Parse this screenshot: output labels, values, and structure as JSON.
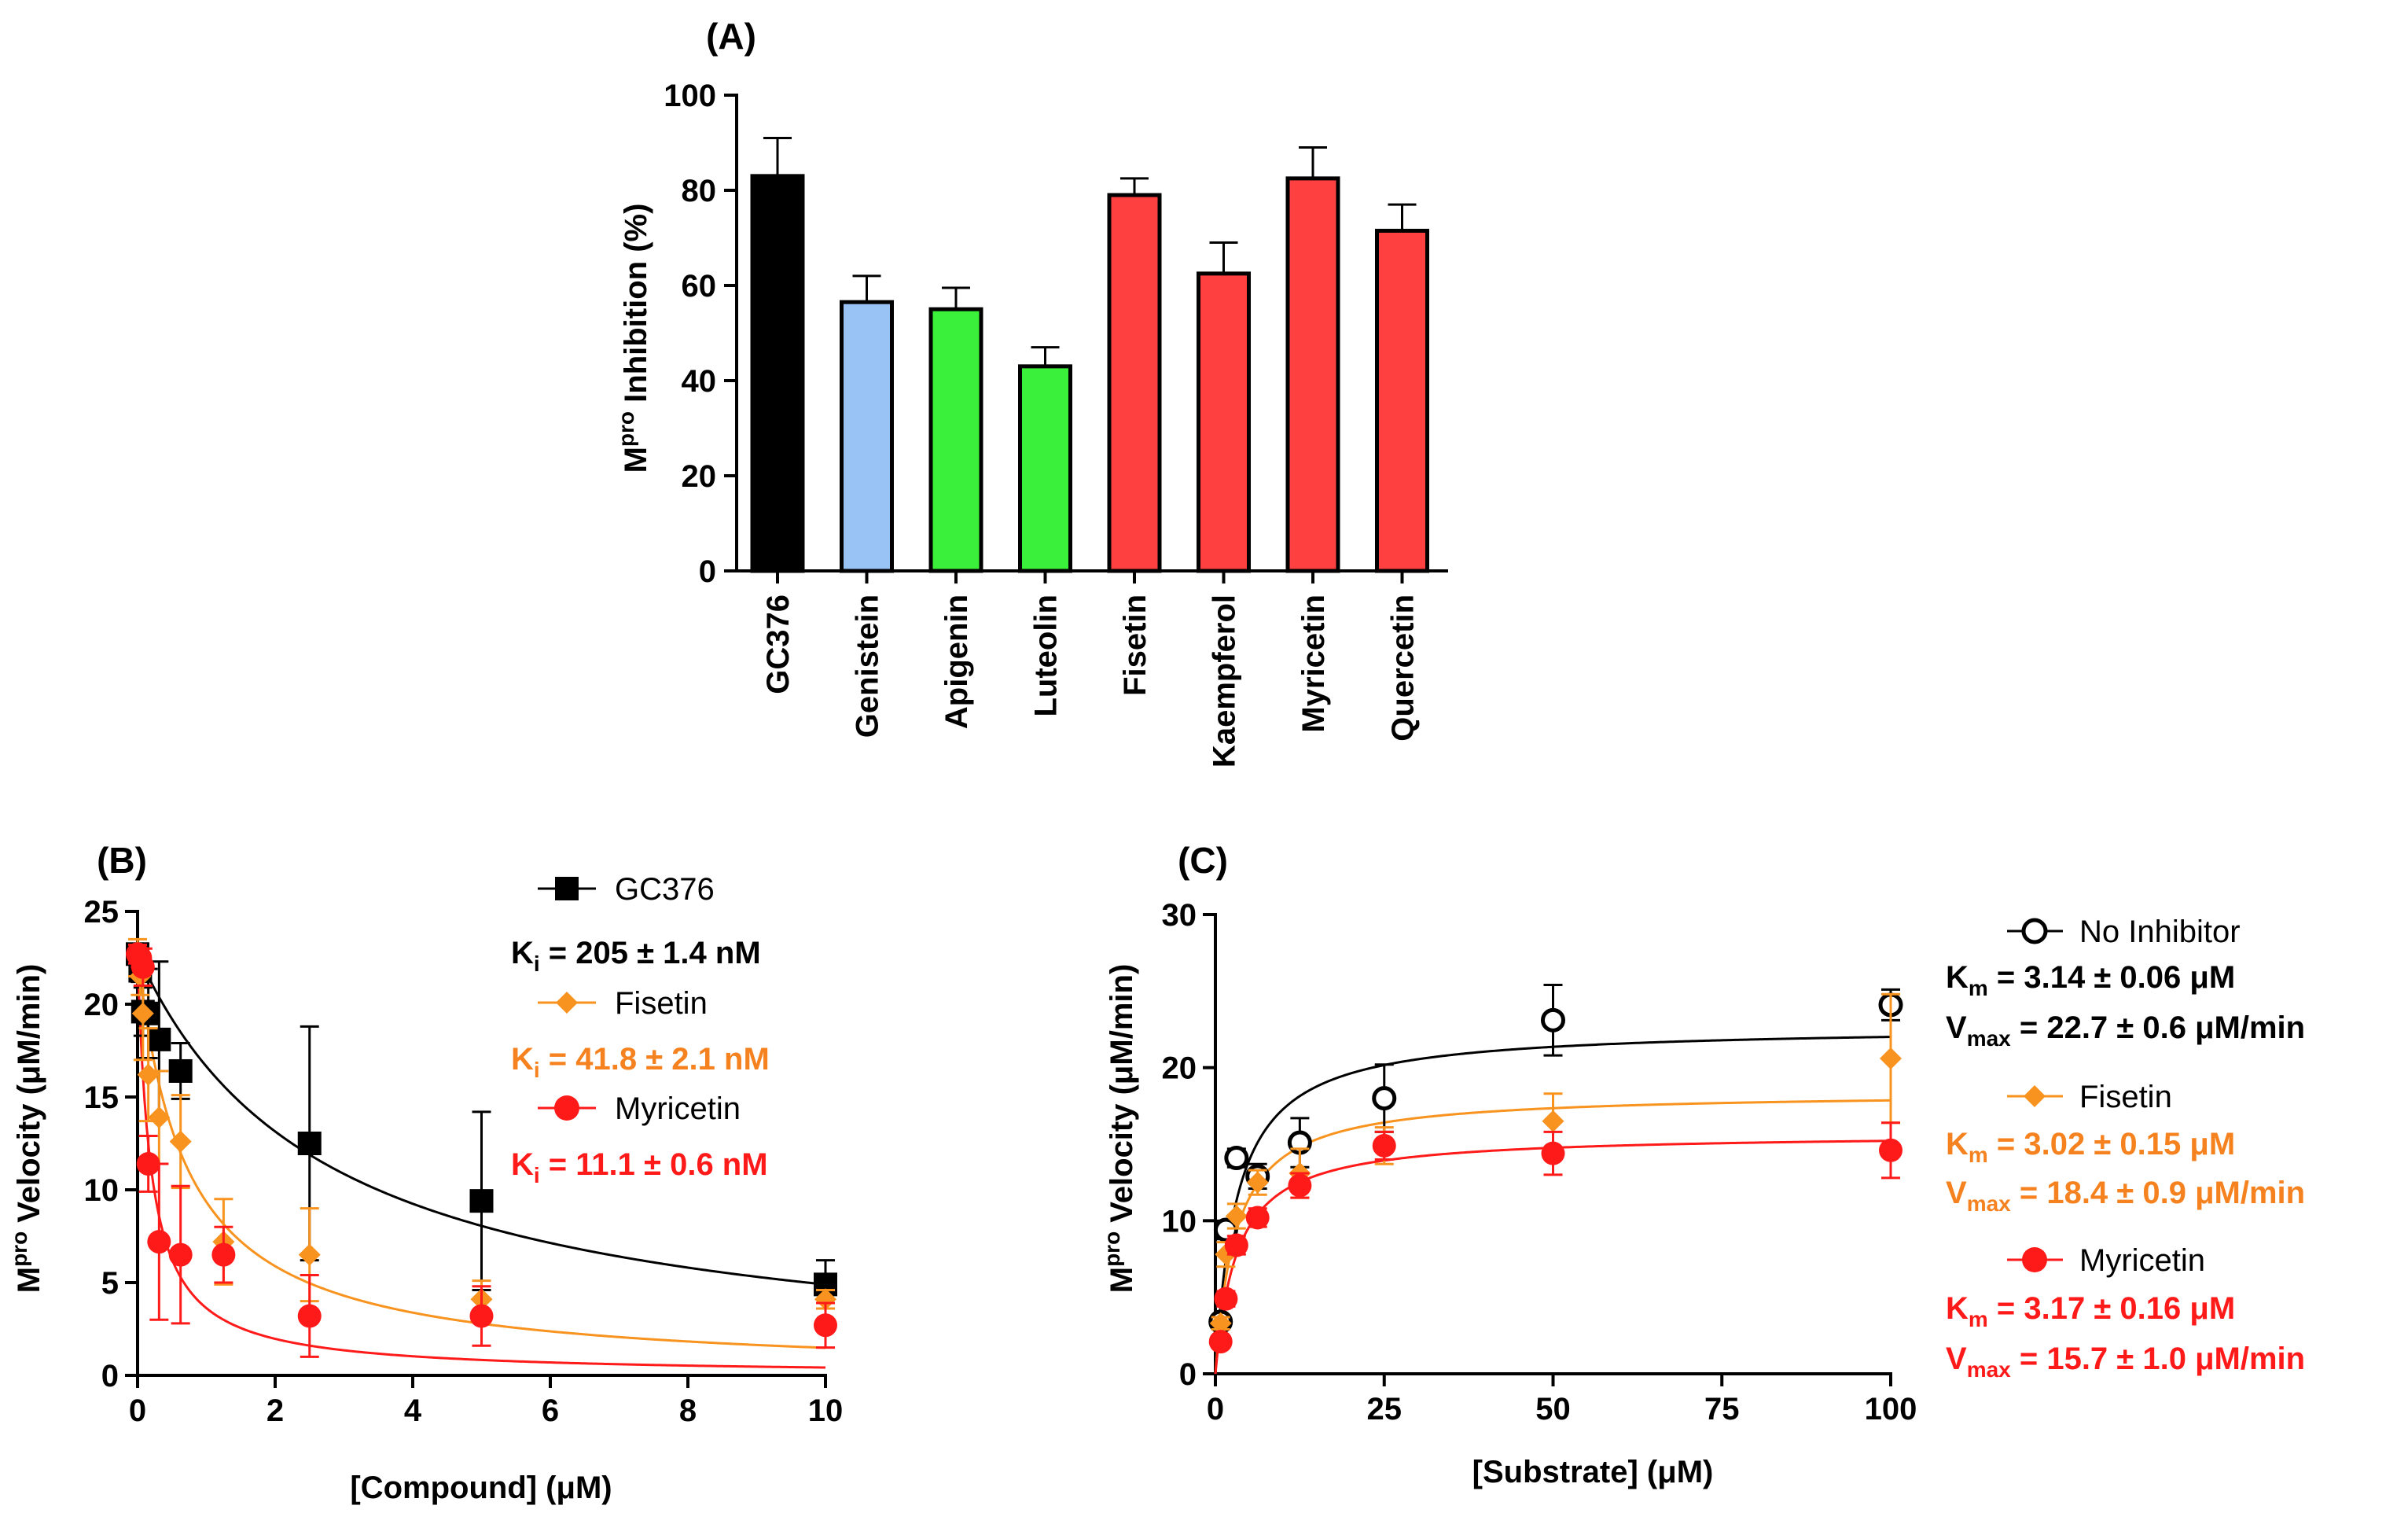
{
  "colors": {
    "black": "#000000",
    "blue": "#99c2f5",
    "green": "#3af03a",
    "red": "#ff4040",
    "orange": "#f7931e",
    "myricetin": "#ff1a1a",
    "kcolor_orange": "#f5821f"
  },
  "chart_data": [
    {
      "panel": "(A)",
      "type": "bar",
      "title": "(A)",
      "ylabel": "Inhibition (%)",
      "ylabel_main": "M",
      "ylabel_sup": "pro",
      "ylim": [
        0,
        100
      ],
      "yticks": [
        "0",
        "20",
        "40",
        "60",
        "80",
        "100"
      ],
      "categories": [
        "GC376",
        "Genistein",
        "Apigenin",
        "Luteolin",
        "Fisetin",
        "Kaempferol",
        "Myricetin",
        "Quercetin"
      ],
      "values": [
        83,
        56.5,
        55,
        43,
        79,
        62.5,
        82.5,
        71.5
      ],
      "errors": [
        8,
        5.5,
        4.5,
        4,
        3.5,
        6.5,
        6.5,
        5.5
      ],
      "bar_colors": [
        "#000000",
        "#99c2f5",
        "#3af03a",
        "#3af03a",
        "#ff4040",
        "#ff4040",
        "#ff4040",
        "#ff4040"
      ]
    },
    {
      "panel": "(B)",
      "type": "scatter",
      "title": "(B)",
      "xlabel": "[Compound] (μM)",
      "ylabel_main": "M",
      "ylabel_sup": "pro",
      "ylabel_rest": " Velocity (μM/min)",
      "xlim": [
        0,
        10
      ],
      "ylim": [
        0,
        25
      ],
      "xticks": [
        "0",
        "2",
        "4",
        "6",
        "8",
        "10"
      ],
      "yticks": [
        "0",
        "5",
        "10",
        "15",
        "20",
        "25"
      ],
      "series": [
        {
          "name": "GC376",
          "marker": "square",
          "color": "#000000",
          "k_label": "K",
          "k_sub": "i",
          "k_value": " = 205 ± 1.4 nM",
          "x": [
            0,
            0.039,
            0.078,
            0.156,
            0.3125,
            0.625,
            2.5,
            5,
            10
          ],
          "y": [
            22.7,
            21.8,
            19.6,
            19.5,
            18.1,
            16.4,
            12.5,
            9.4,
            4.9
          ],
          "err": [
            0.4,
            0.6,
            1.3,
            2.4,
            4.2,
            1.5,
            6.3,
            4.8,
            1.3
          ],
          "fit": {
            "v0": 22.7,
            "ic50": 2.75
          }
        },
        {
          "name": "Fisetin",
          "marker": "diamond",
          "color": "#f7931e",
          "k_label": "K",
          "k_sub": "i",
          "k_value": " = 41.8 ± 2.1 nM",
          "x": [
            0,
            0.039,
            0.078,
            0.156,
            0.3125,
            0.625,
            1.25,
            2.5,
            5,
            10
          ],
          "y": [
            22.5,
            21.5,
            19.5,
            16.2,
            13.9,
            12.6,
            7.2,
            6.5,
            4.1,
            4.1
          ],
          "err": [
            1.0,
            1.0,
            2.5,
            2.5,
            2.5,
            2.5,
            2.3,
            2.5,
            1.0,
            0.5
          ],
          "fit": {
            "v0": 22.7,
            "ic50": 0.7
          }
        },
        {
          "name": "Myricetin",
          "marker": "circle",
          "color": "#ff1a1a",
          "k_label": "K",
          "k_sub": "i",
          "k_value": " = 11.1 ± 0.6 nM",
          "x": [
            0,
            0.039,
            0.078,
            0.156,
            0.3125,
            0.625,
            1.25,
            2.5,
            5,
            10
          ],
          "y": [
            22.7,
            22.5,
            22.0,
            11.4,
            7.2,
            6.5,
            6.5,
            3.2,
            3.2,
            2.7
          ],
          "err": [
            0.5,
            0.5,
            1.0,
            1.5,
            4.2,
            3.7,
            1.5,
            2.2,
            1.6,
            1.2
          ],
          "fit": {
            "v0": 22.7,
            "ic50": 0.19
          }
        }
      ]
    },
    {
      "panel": "(C)",
      "type": "scatter",
      "title": "(C)",
      "xlabel": "[Substrate] (μM)",
      "ylabel_main": "M",
      "ylabel_sup": "pro",
      "ylabel_rest": " Velocity (μM/min)",
      "xlim": [
        0,
        100
      ],
      "ylim": [
        0,
        30
      ],
      "xticks": [
        "0",
        "25",
        "50",
        "75",
        "100"
      ],
      "yticks": [
        "0",
        "10",
        "20",
        "30"
      ],
      "series": [
        {
          "name": "No Inhibitor",
          "marker": "open-circle",
          "color": "#000000",
          "km_text": " = 3.14 ± 0.06 μM",
          "vmax_text": " = 22.7 ± 0.6 μM/min",
          "x": [
            0.78,
            1.56,
            3.125,
            6.25,
            12.5,
            25,
            50,
            100
          ],
          "y": [
            3.4,
            9.4,
            14.1,
            12.9,
            15.1,
            18.0,
            23.1,
            24.1
          ],
          "err": [
            0.4,
            0.6,
            0.6,
            0.8,
            1.6,
            2.2,
            2.3,
            1.0
          ],
          "fit": {
            "vmax": 22.7,
            "km": 3.14
          }
        },
        {
          "name": "Fisetin",
          "marker": "diamond",
          "color": "#f7931e",
          "km_text": " = 3.02 ± 0.15 μM",
          "vmax_text": " = 18.4 ± 0.9 μM/min",
          "x": [
            0.78,
            1.56,
            3.125,
            6.25,
            12.5,
            25,
            50,
            100
          ],
          "y": [
            3.3,
            7.8,
            10.3,
            12.5,
            13.1,
            14.9,
            16.5,
            20.6
          ],
          "err": [
            0.4,
            0.8,
            0.8,
            0.8,
            1.6,
            1.2,
            1.8,
            4.2
          ],
          "fit": {
            "vmax": 18.4,
            "km": 3.02
          }
        },
        {
          "name": "Myricetin",
          "marker": "circle",
          "color": "#ff1a1a",
          "km_text": " = 3.17 ± 0.16 μM",
          "vmax_text": " = 15.7 ± 1.0 μM/min",
          "x": [
            0.78,
            1.56,
            3.125,
            6.25,
            12.5,
            25,
            50,
            100
          ],
          "y": [
            2.1,
            4.9,
            8.4,
            10.2,
            12.3,
            14.9,
            14.4,
            14.6
          ],
          "err": [
            0.4,
            0.5,
            0.6,
            0.6,
            0.8,
            0.9,
            1.4,
            1.8
          ],
          "fit": {
            "vmax": 15.7,
            "km": 3.17
          }
        }
      ]
    }
  ],
  "legend_labels": {
    "km_main": "K",
    "km_sub": "m",
    "vmax_main": "V",
    "vmax_sub": "max"
  }
}
